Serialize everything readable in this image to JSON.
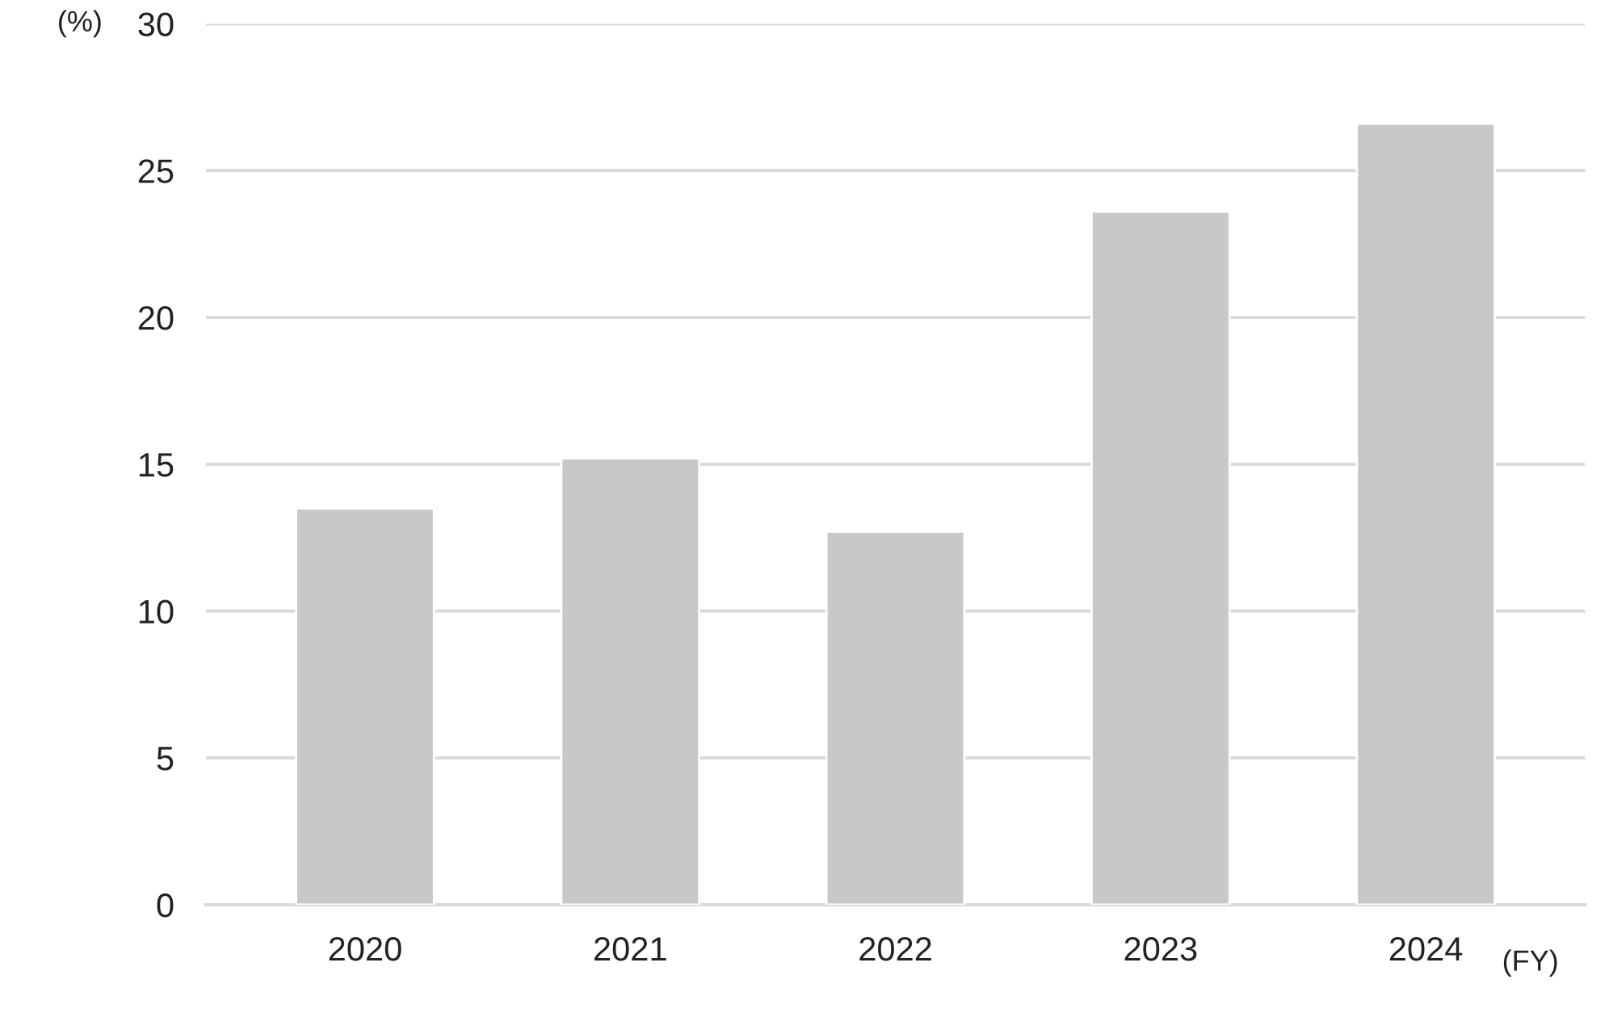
{
  "chart_data": {
    "type": "bar",
    "categories": [
      "2020",
      "2021",
      "2022",
      "2023",
      "2024"
    ],
    "values": [
      13.5,
      15.2,
      12.7,
      23.6,
      26.6
    ],
    "color": "#c8c8c8",
    "ylim": [
      0,
      30
    ],
    "yticks": [
      0,
      5,
      10,
      15,
      20,
      25,
      30
    ],
    "ylabel": "(%)",
    "xlabel": "(FY)",
    "grid": "y"
  }
}
